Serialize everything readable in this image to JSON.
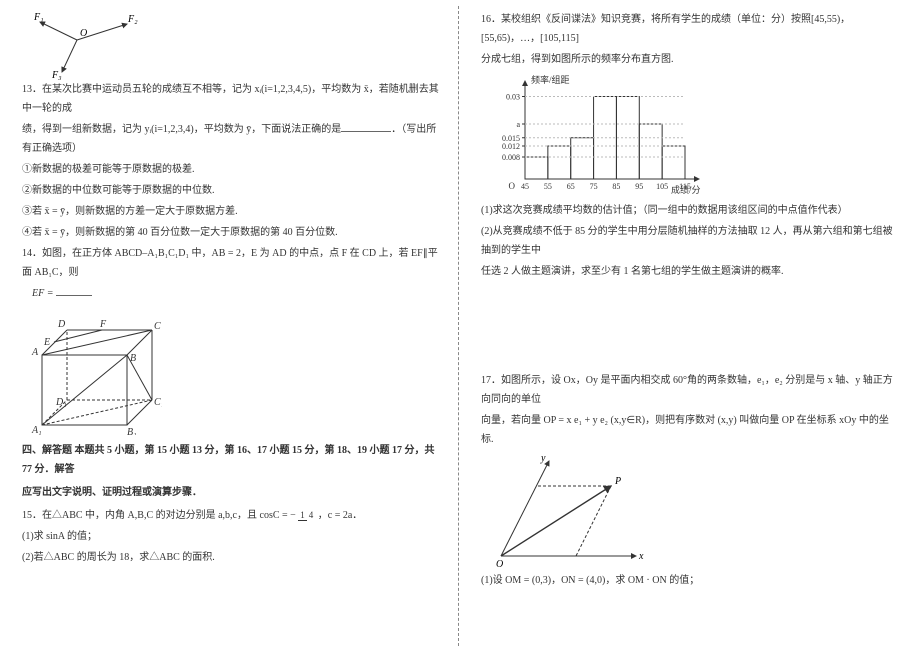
{
  "left": {
    "fig_vectors": {
      "type": "diagram",
      "labels": {
        "F1": "F₁",
        "F2": "F₂",
        "F3": "F₃",
        "O": "O"
      },
      "stroke": "#333333"
    },
    "q13": {
      "num": "13．",
      "text1": "在某次比赛中运动员五轮的成绩互不相等，记为 xᵢ(i=1,2,3,4,5)，平均数为 x̄，若随机删去其中一轮的成",
      "text2": "绩，得到一组新数据，记为 yᵢ(i=1,2,3,4)，平均数为 ȳ，下面说法正确的是",
      "tail": "．（写出所有正确选项）",
      "opt1": "①新数据的极差可能等于原数据的极差.",
      "opt2": "②新数据的中位数可能等于原数据的中位数.",
      "opt3": "③若 x̄ = ȳ，则新数据的方差一定大于原数据方差.",
      "opt4": "④若 x̄ = ȳ，则新数据的第 40 百分位数一定大于原数据的第 40 百分位数."
    },
    "q14": {
      "num": "14．",
      "text": "如图，在正方体 ABCD–A₁B₁C₁D₁ 中，AB = 2，E 为 AD 的中点，点 F 在 CD 上，若 EF∥平面 AB₁C，则",
      "ef": "EF ="
    },
    "cube": {
      "type": "diagram",
      "labels": {
        "A": "A",
        "B": "B",
        "C": "C",
        "D": "D",
        "A1": "A₁",
        "B1": "B₁",
        "C1": "C₁",
        "D1": "D₁",
        "E": "E",
        "F": "F"
      },
      "stroke": "#333333",
      "dash": "3,2"
    },
    "section4": {
      "title": "四、解答题  本题共 5 小题，第 15 小题 13 分，第 16、17 小题 15 分，第 18、19 小题 17 分，共 77 分．解答",
      "title2": "应写出文字说明、证明过程或演算步骤．"
    },
    "q15": {
      "num": "15．",
      "text": "在△ABC 中，内角 A,B,C 的对边分别是 a,b,c，且 cosC = −",
      "frac_n": "1",
      "frac_d": "4",
      "tail": "，c = 2a．",
      "p1": "(1)求 sinA 的值；",
      "p2": "(2)若△ABC 的周长为 18，求△ABC 的面积."
    }
  },
  "right": {
    "q16": {
      "num": "16．",
      "text1": "某校组织《反间谍法》知识竞赛，将所有学生的成绩（单位：分）按照[45,55)，[55,65)，…，[105,115]",
      "text2": "分成七组，得到如图所示的频率分布直方图.",
      "hist": {
        "type": "histogram",
        "ylabel": "频率/组距",
        "xlabel": "成绩/分",
        "xticks": [
          "45",
          "55",
          "65",
          "75",
          "85",
          "95",
          "105",
          "115"
        ],
        "yticks": [
          "0.008",
          "0.012",
          "0.015",
          "a",
          "0.03"
        ],
        "ytick_pos": [
          0.008,
          0.012,
          0.015,
          0.02,
          0.03
        ],
        "bars": [
          {
            "x": 45,
            "w": 10,
            "h": 0.008
          },
          {
            "x": 55,
            "w": 10,
            "h": 0.012
          },
          {
            "x": 65,
            "w": 10,
            "h": 0.015
          },
          {
            "x": 75,
            "w": 10,
            "h": 0.03
          },
          {
            "x": 85,
            "w": 10,
            "h": 0.03
          },
          {
            "x": 95,
            "w": 10,
            "h": 0.02
          },
          {
            "x": 105,
            "w": 10,
            "h": 0.012
          }
        ],
        "stroke": "#333333",
        "bg": "#ffffff"
      },
      "p1": "(1)求这次竞赛成绩平均数的估计值；（同一组中的数据用该组区间的中点值作代表）",
      "p2a": "(2)从竞赛成绩不低于 85 分的学生中用分层随机抽样的方法抽取 12 人，再从第六组和第七组被抽到的学生中",
      "p2b": "任选 2 人做主题演讲，求至少有 1 名第七组的学生做主题演讲的概率."
    },
    "q17": {
      "num": "17．",
      "text1": "如图所示，设 Ox，Oy 是平面内相交成 60°角的两条数轴，e₁，e₂ 分别是与 x 轴、y 轴正方向同向的单位",
      "text2": "向量，若向量 OP = x e₁ + y e₂ (x,y∈R)，则把有序数对 (x,y) 叫做向量 OP 在坐标系 xOy 中的坐标.",
      "oblique": {
        "type": "diagram",
        "labels": {
          "O": "O",
          "x": "x",
          "y": "y",
          "P": "P"
        },
        "angle_deg": 60,
        "stroke": "#333333",
        "dash": "3,2"
      },
      "p1": "(1)设 OM = (0,3)，ON = (4,0)，求 OM · ON 的值；"
    }
  },
  "colors": {
    "text": "#333333",
    "bg": "#ffffff",
    "axis": "#333333"
  }
}
